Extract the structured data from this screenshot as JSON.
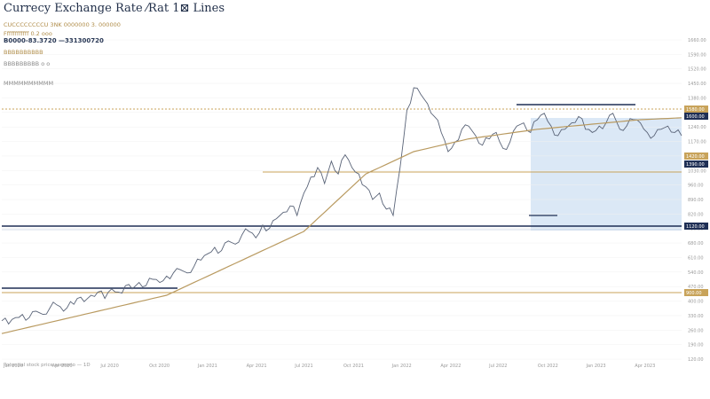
{
  "app": {
    "title": "Currecy Exchange Rate ⁄Rat 1⊠ Lines",
    "info_lines": [
      "CUCCCCCCCCU  3NK 0000000 3.  000000",
      "Ffffffffffff 0.2 ooo",
      "B0000-83.3720  —331300720",
      "BBBBBBBBBB",
      "BBBBBBBBB o  o",
      "MMMMMMMMMM"
    ]
  },
  "chart_data": {
    "type": "line",
    "x_range": [
      0,
      100
    ],
    "y_range": [
      0,
      100
    ],
    "series": [
      {
        "values": [
          12,
          11,
          13,
          14,
          13,
          15,
          14,
          16,
          17,
          15,
          18,
          19,
          18,
          20,
          21,
          19,
          22,
          21,
          23,
          22,
          24,
          23,
          25,
          24,
          26,
          27,
          28,
          27,
          29,
          31,
          33,
          35,
          34,
          37,
          36,
          39,
          40,
          38,
          42,
          41,
          44,
          46,
          48,
          45,
          52,
          57,
          60,
          55,
          62,
          58,
          64,
          60,
          58,
          54,
          50,
          52,
          47,
          45,
          60,
          78,
          85,
          83,
          80,
          76,
          71,
          65,
          68,
          72,
          73,
          70,
          67,
          69,
          71,
          66,
          68,
          73,
          74,
          71,
          75,
          77,
          73,
          70,
          72,
          74,
          76,
          72,
          71,
          73,
          74,
          77,
          72,
          73,
          75,
          74,
          71,
          70,
          72,
          73,
          71,
          70
        ]
      },
      {
        "values": [
          8,
          8.5,
          9,
          9.5,
          10,
          10.5,
          11,
          11.5,
          12,
          12.5,
          13,
          13.5,
          14,
          14.5,
          15,
          15.5,
          16,
          16.5,
          17,
          17.5,
          18,
          18.5,
          19,
          19.5,
          20,
          21,
          22,
          23,
          24,
          25,
          26,
          27,
          28,
          29,
          30,
          31,
          32,
          33,
          34,
          35,
          36,
          37,
          38,
          39,
          40,
          42,
          44,
          46,
          48,
          50,
          52,
          54,
          56,
          58,
          59,
          60,
          61,
          62,
          63,
          64,
          65,
          65.5,
          66,
          66.5,
          67,
          67.5,
          68,
          68.5,
          69,
          69.3,
          69.6,
          69.9,
          70.2,
          70.5,
          70.8,
          71.1,
          71.4,
          71.7,
          72,
          72.2,
          72.4,
          72.6,
          72.8,
          73,
          73.2,
          73.4,
          73.6,
          73.8,
          74,
          74.2,
          74.4,
          74.6,
          74.8,
          75,
          75.1,
          75.2,
          75.3,
          75.4,
          75.5,
          75.6
        ]
      }
    ],
    "y_ticks": [
      "1660.00",
      "1590.00",
      "1520.00",
      "1450.00",
      "1380.00",
      "1310.00",
      "1240.00",
      "1170.00",
      "1100.00",
      "1030.00",
      "960.00",
      "890.00",
      "820.00",
      "750.00",
      "680.00",
      "610.00",
      "540.00",
      "470.00",
      "400.00",
      "330.00",
      "260.00",
      "190.00",
      "120.00"
    ],
    "x_ticks": [
      "Jan 2020",
      "Apr 2020",
      "Jul 2020",
      "Oct 2020",
      "Jan 2021",
      "Apr 2021",
      "Jul 2021",
      "Oct 2021",
      "Jan 2022",
      "Apr 2022",
      "Jul 2022",
      "Oct 2022",
      "Jan 2023",
      "Apr 2023"
    ],
    "horizontal_lines": [
      {
        "color": "#c8a35a",
        "label": "1580.00",
        "style": "dashed"
      },
      {
        "color": "#c8a35a",
        "label": "1350.00"
      },
      {
        "color": "#1f2f55",
        "label": "1120.00"
      },
      {
        "color": "#c8a35a",
        "label": "900.00"
      }
    ]
  },
  "footer_text": "Potential stock price scenario — 1D"
}
